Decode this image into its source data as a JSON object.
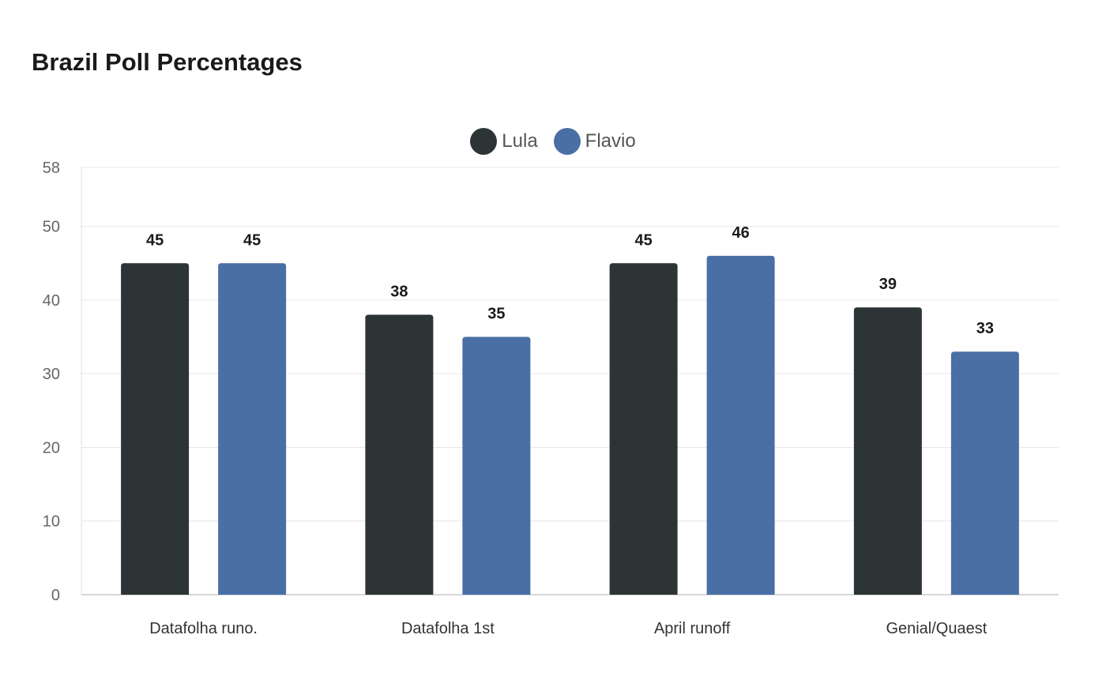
{
  "chart_data": {
    "type": "bar",
    "title": "Brazil Poll Percentages",
    "categories": [
      "Datafolha runo.",
      "Datafolha 1st",
      "April runoff",
      "Genial/Quaest"
    ],
    "series": [
      {
        "name": "Lula",
        "color": "#2d3436",
        "values": [
          45,
          38,
          45,
          39
        ]
      },
      {
        "name": "Flavio",
        "color": "#4a6fa5",
        "values": [
          45,
          35,
          46,
          33
        ]
      }
    ],
    "y_ticks": [
      0,
      10,
      20,
      30,
      40,
      50,
      58
    ],
    "ylim": [
      0,
      58
    ],
    "grid": true,
    "legend_position": "top-center",
    "data_labels": true
  }
}
